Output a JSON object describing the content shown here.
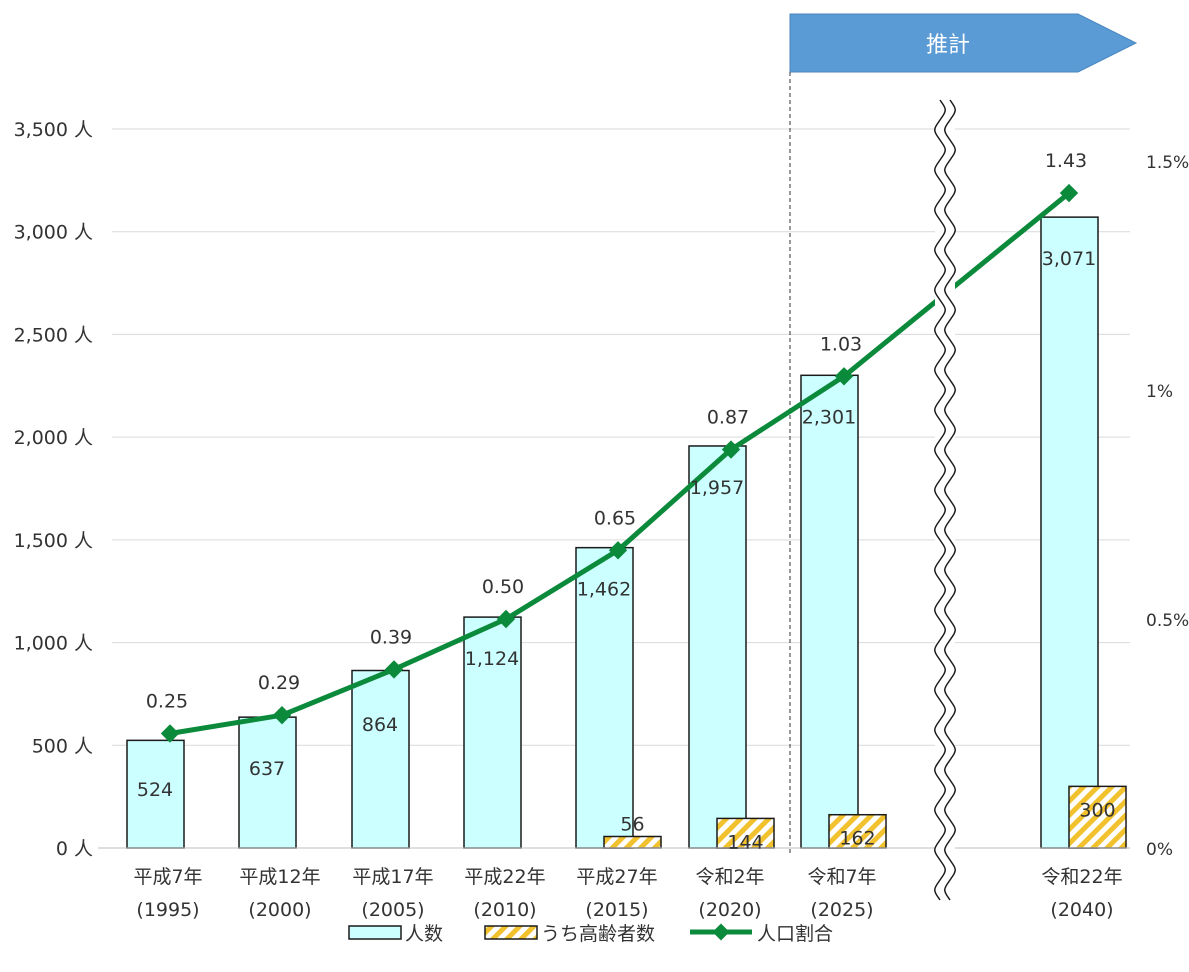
{
  "colors": {
    "bar_fill": "#CCFFFF",
    "bar_stroke": "#1a1a1a",
    "hatch_bg": "#FFFFFF",
    "hatch_stripe": "#F2C12E",
    "line": "#0B8A3C",
    "banner": "#5B9BD5",
    "grid": "#D9D9D9",
    "text": "#333333"
  },
  "banner": {
    "label": "推計"
  },
  "icons": {
    "axis_break": "wavy-break-icon"
  },
  "chart_data": {
    "type": "bar",
    "categories": [
      [
        "平成7年",
        "(1995)"
      ],
      [
        "平成12年",
        "(2000)"
      ],
      [
        "平成17年",
        "(2005)"
      ],
      [
        "平成22年",
        "(2010)"
      ],
      [
        "平成27年",
        "(2015)"
      ],
      [
        "令和2年",
        "(2020)"
      ],
      [
        "令和7年",
        "(2025)"
      ],
      [
        "令和22年",
        "(2040)"
      ]
    ],
    "series": [
      {
        "name": "人数",
        "type": "bar",
        "axis": "left",
        "values": [
          524,
          637,
          864,
          1124,
          1462,
          1957,
          2301,
          3071
        ],
        "labels": [
          "524",
          "637",
          "864",
          "1,124",
          "1,462",
          "1,957",
          "2,301",
          "3,071"
        ]
      },
      {
        "name": "うち高齢者数",
        "type": "bar-hatched",
        "axis": "left",
        "values": [
          null,
          null,
          null,
          null,
          56,
          144,
          162,
          300
        ],
        "labels": [
          "",
          "",
          "",
          "",
          "56",
          "144",
          "162",
          "300"
        ]
      },
      {
        "name": "人口割合",
        "type": "line",
        "axis": "right",
        "values": [
          0.25,
          0.29,
          0.39,
          0.5,
          0.65,
          0.87,
          1.03,
          1.43
        ],
        "labels": [
          "0.25",
          "0.29",
          "0.39",
          "0.50",
          "0.65",
          "0.87",
          "1.03",
          "1.43"
        ]
      }
    ],
    "y_left": {
      "ylim": [
        0,
        3500
      ],
      "ticks": [
        0,
        500,
        1000,
        1500,
        2000,
        2500,
        3000,
        3500
      ],
      "tick_labels": [
        "0 人",
        "500 人",
        "1,000 人",
        "1,500 人",
        "2,000 人",
        "2,500 人",
        "3,000 人",
        "3,500 人"
      ]
    },
    "y_right": {
      "ylim": [
        0,
        1.5
      ],
      "ticks": [
        0,
        0.5,
        1,
        1.5
      ],
      "tick_labels": [
        "0%",
        "0.5%",
        "1%",
        "1.5%"
      ]
    },
    "projection_start_category": "令和7年",
    "axis_break_between": [
      "令和7年",
      "令和22年"
    ],
    "grid": true,
    "legend_position": "bottom"
  }
}
